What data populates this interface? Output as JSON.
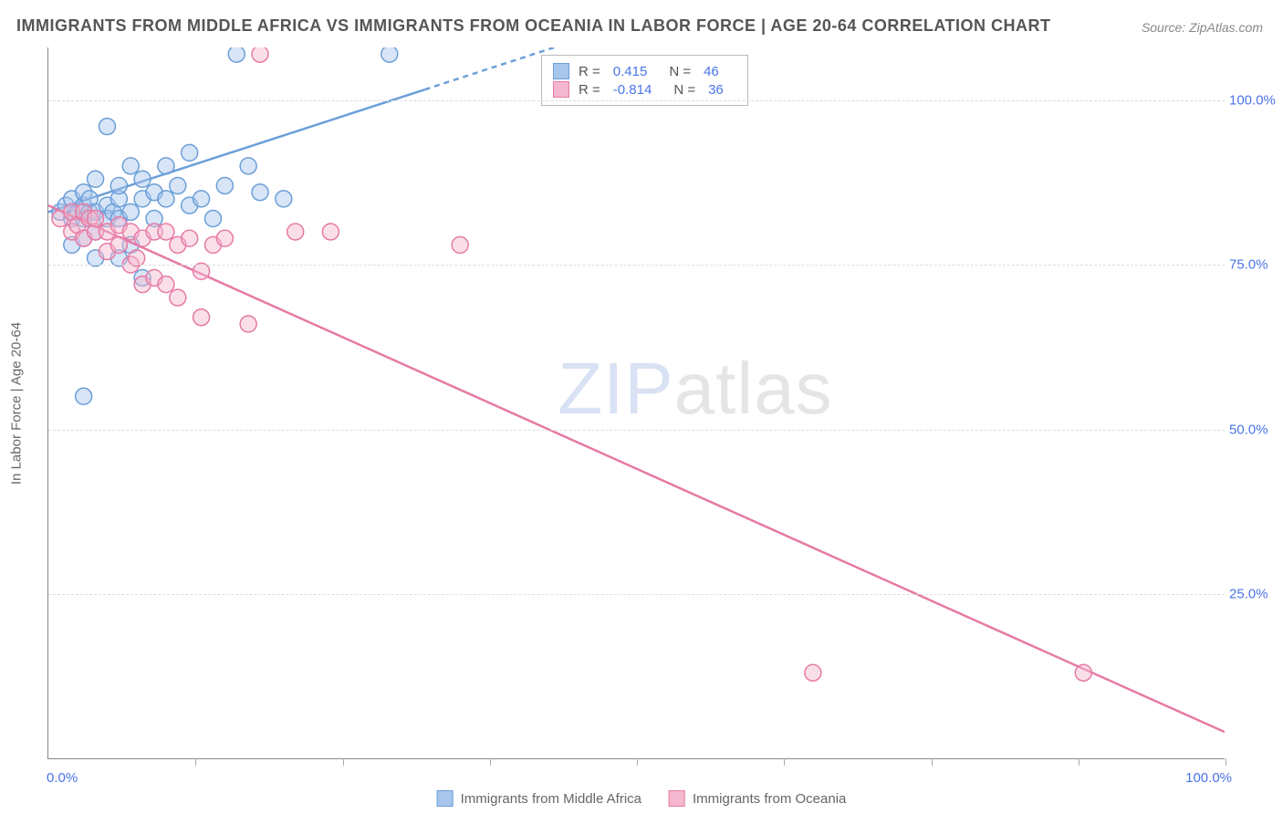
{
  "title": "IMMIGRANTS FROM MIDDLE AFRICA VS IMMIGRANTS FROM OCEANIA IN LABOR FORCE | AGE 20-64 CORRELATION CHART",
  "source": "Source: ZipAtlas.com",
  "ylabel": "In Labor Force | Age 20-64",
  "watermark_a": "ZIP",
  "watermark_b": "atlas",
  "chart": {
    "type": "scatter-correlation",
    "xlim": [
      0,
      100
    ],
    "ylim": [
      0,
      108
    ],
    "xtick_positions": [
      0,
      12.5,
      25,
      37.5,
      50,
      62.5,
      75,
      87.5,
      100
    ],
    "xtick_labels": {
      "0": "0.0%",
      "100": "100.0%"
    },
    "ytick_positions": [
      25,
      50,
      75,
      100
    ],
    "ytick_labels": [
      "25.0%",
      "50.0%",
      "75.0%",
      "100.0%"
    ],
    "grid_color": "#dddddd",
    "axis_color": "#888888",
    "label_color": "#4a74e8",
    "series": [
      {
        "name": "Immigrants from Middle Africa",
        "color_fill": "#a8c5ed",
        "color_stroke": "#6b9fd8",
        "marker_radius": 9,
        "fill_opacity": 0.45,
        "R": "0.415",
        "N": "46",
        "regression": {
          "x1": 0,
          "y1": 83,
          "x2": 43,
          "y2": 108,
          "dash_after_x": 32
        },
        "points": [
          [
            1,
            83
          ],
          [
            1.5,
            84
          ],
          [
            2,
            82
          ],
          [
            2,
            85
          ],
          [
            2.5,
            83
          ],
          [
            3,
            84
          ],
          [
            3,
            86
          ],
          [
            3,
            82
          ],
          [
            3.5,
            83
          ],
          [
            3.5,
            85
          ],
          [
            4,
            83
          ],
          [
            4,
            88
          ],
          [
            4,
            80
          ],
          [
            5,
            84
          ],
          [
            5,
            96
          ],
          [
            5,
            82
          ],
          [
            5.5,
            83
          ],
          [
            6,
            85
          ],
          [
            6,
            82
          ],
          [
            6,
            87
          ],
          [
            7,
            90
          ],
          [
            7,
            83
          ],
          [
            8,
            85
          ],
          [
            8,
            88
          ],
          [
            8,
            73
          ],
          [
            9,
            86
          ],
          [
            9,
            82
          ],
          [
            10,
            90
          ],
          [
            10,
            85
          ],
          [
            11,
            87
          ],
          [
            12,
            92
          ],
          [
            12,
            84
          ],
          [
            13,
            85
          ],
          [
            14,
            82
          ],
          [
            15,
            87
          ],
          [
            17,
            90
          ],
          [
            18,
            86
          ],
          [
            20,
            85
          ],
          [
            3,
            55
          ],
          [
            16,
            107
          ],
          [
            29,
            107
          ],
          [
            2,
            78
          ],
          [
            3,
            79
          ],
          [
            4,
            76
          ],
          [
            6,
            76
          ],
          [
            7,
            78
          ]
        ]
      },
      {
        "name": "Immigrants from Oceania",
        "color_fill": "#f5b8ce",
        "color_stroke": "#e67aa5",
        "marker_radius": 9,
        "fill_opacity": 0.45,
        "R": "-0.814",
        "N": "36",
        "regression": {
          "x1": 0,
          "y1": 84,
          "x2": 100,
          "y2": 4,
          "dash_after_x": 100
        },
        "points": [
          [
            1,
            82
          ],
          [
            2,
            83
          ],
          [
            2,
            80
          ],
          [
            2.5,
            81
          ],
          [
            3,
            83
          ],
          [
            3,
            79
          ],
          [
            3.5,
            82
          ],
          [
            4,
            80
          ],
          [
            4,
            82
          ],
          [
            5,
            80
          ],
          [
            5,
            77
          ],
          [
            6,
            81
          ],
          [
            6,
            78
          ],
          [
            7,
            80
          ],
          [
            7,
            75
          ],
          [
            7.5,
            76
          ],
          [
            8,
            79
          ],
          [
            8,
            72
          ],
          [
            9,
            80
          ],
          [
            9,
            73
          ],
          [
            10,
            80
          ],
          [
            10,
            72
          ],
          [
            11,
            78
          ],
          [
            11,
            70
          ],
          [
            12,
            79
          ],
          [
            13,
            74
          ],
          [
            13,
            67
          ],
          [
            14,
            78
          ],
          [
            15,
            79
          ],
          [
            17,
            66
          ],
          [
            18,
            107
          ],
          [
            21,
            80
          ],
          [
            24,
            80
          ],
          [
            35,
            78
          ],
          [
            65,
            13
          ],
          [
            88,
            13
          ]
        ]
      }
    ]
  }
}
